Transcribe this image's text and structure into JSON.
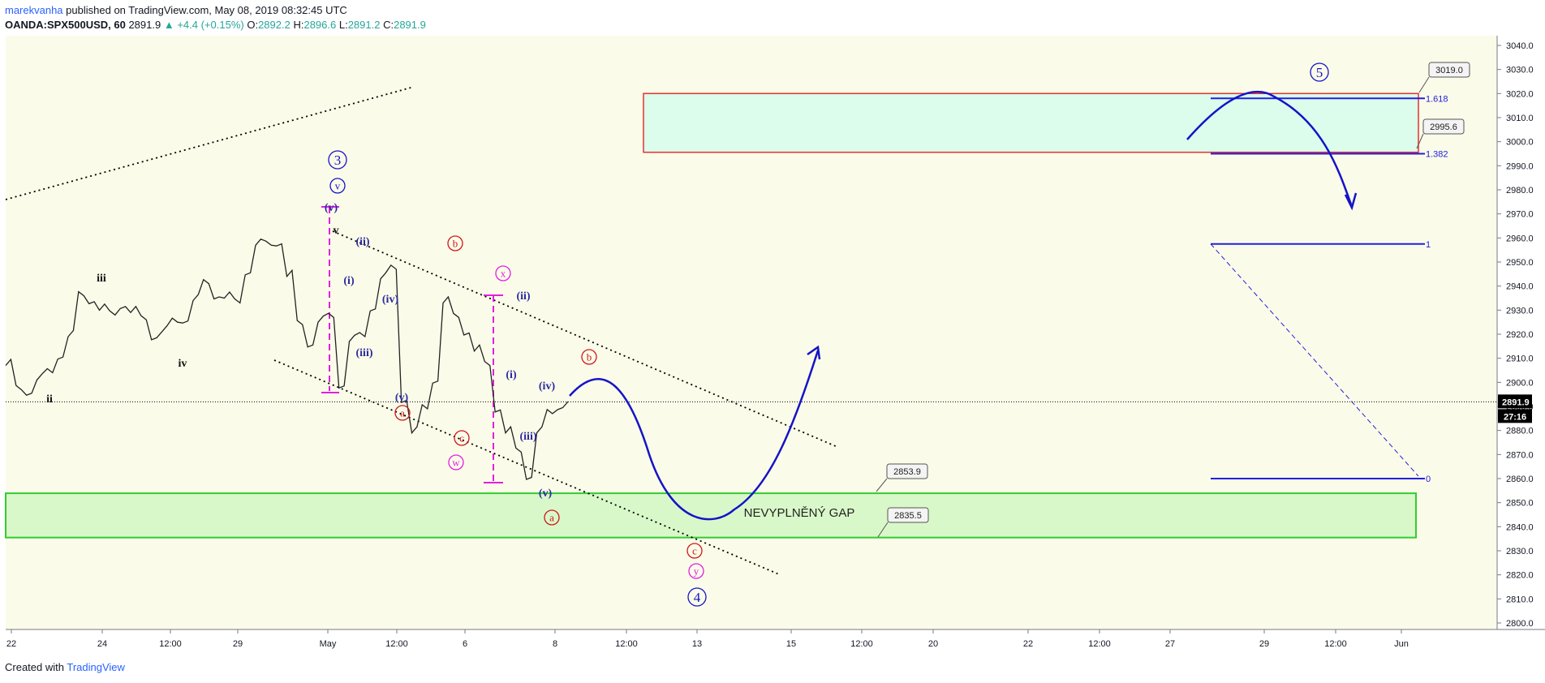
{
  "header": {
    "author": "marekvanha",
    "published": "published on TradingView.com, May 08, 2019 08:32:45 UTC",
    "symbol": "OANDA:SPX500USD, 60",
    "last": "2891.9",
    "change": "▲ +4.4 (+0.15%)",
    "o_label": "O:",
    "o": "2892.2",
    "h_label": "H:",
    "h": "2896.6",
    "l_label": "L:",
    "l": "2891.2",
    "c_label": "C:",
    "c": "2891.9"
  },
  "footer": {
    "created": "Created with",
    "brand": "TradingView"
  },
  "colors": {
    "background": "#fbfbe9",
    "gap_zone": "#d9f8c9",
    "gap_border": "#33cc33",
    "target_zone": "#dcfcec",
    "target_border": "#e83030",
    "wave_blue": "#1414c8",
    "magenta": "#e020e0",
    "red": "#cc1a1a",
    "price_line": "#000000"
  },
  "chart_data": {
    "type": "line",
    "title": "",
    "xlabel": "",
    "ylabel": "",
    "ylim": [
      2795,
      3045
    ],
    "y_ticks": [
      3040.0,
      3030.0,
      3020.0,
      3010.0,
      3000.0,
      2990.0,
      2980.0,
      2970.0,
      2960.0,
      2950.0,
      2940.0,
      2930.0,
      2920.0,
      2910.0,
      2900.0,
      2890.0,
      2880.0,
      2870.0,
      2860.0,
      2850.0,
      2840.0,
      2830.0,
      2820.0,
      2810.0,
      2800.0
    ],
    "x_ticks": [
      "22",
      "24",
      "12:00",
      "29",
      "May",
      "12:00",
      "6",
      "8",
      "12:00",
      "13",
      "15",
      "12:00",
      "20",
      "22",
      "12:00",
      "27",
      "29",
      "12:00",
      "Jun"
    ],
    "series": [
      {
        "values": [
          2908,
          2898,
          2895,
          2902,
          2905,
          2910,
          2920,
          2937,
          2933,
          2931,
          2929,
          2931,
          2930,
          2927,
          2918,
          2922,
          2926,
          2925,
          2935,
          2942,
          2935,
          2936,
          2934,
          2945,
          2958,
          2958,
          2957,
          2945,
          2925,
          2915,
          2926,
          2928,
          2898,
          2918,
          2920,
          2930,
          2944,
          2948,
          2892,
          2880,
          2890,
          2900,
          2934,
          2928,
          2920,
          2914,
          2908,
          2888,
          2880,
          2872,
          2860,
          2880,
          2888,
          2889,
          2893
        ]
      }
    ],
    "current_price": "2891.9",
    "countdown": "27:16",
    "gap_zone": {
      "from": 2835.5,
      "to": 2853.9,
      "label": "NEVYPLNĚNÝ GAP",
      "top_label": "2853.9",
      "bottom_label": "2835.5"
    },
    "target_zone": {
      "from": 2995.6,
      "to": 3019.0,
      "top_label": "3019.0",
      "bottom_label": "2995.6"
    },
    "fib_levels": [
      {
        "label": "1.618",
        "value": 3018
      },
      {
        "label": "1.382",
        "value": 2995
      },
      {
        "label": "1",
        "value": 2957.5
      },
      {
        "label": "0",
        "value": 2860
      }
    ],
    "projection": [
      [
        2895,
        2903
      ],
      [
        2898,
        2880
      ],
      [
        2895,
        2845
      ],
      [
        2896,
        2862
      ],
      [
        2897,
        2912
      ]
    ],
    "wave5_projection": [
      3000,
      3018,
      2969
    ],
    "wave_labels_circle_blue": [
      "3",
      "v",
      "4",
      "5"
    ],
    "wave_labels_blue": [
      "(v)",
      "(ii)",
      "(i)",
      "(iv)",
      "(iii)",
      "(v)",
      "(ii)",
      "(i)",
      "(iv)",
      "(iii)",
      "(v)"
    ],
    "wave_labels_black": [
      "iii",
      "iv",
      "ii",
      "v"
    ],
    "wave_labels_red": [
      "b",
      "a",
      "c",
      "b",
      "a",
      "c"
    ],
    "wave_labels_magenta": [
      "x",
      "w",
      "y"
    ]
  }
}
